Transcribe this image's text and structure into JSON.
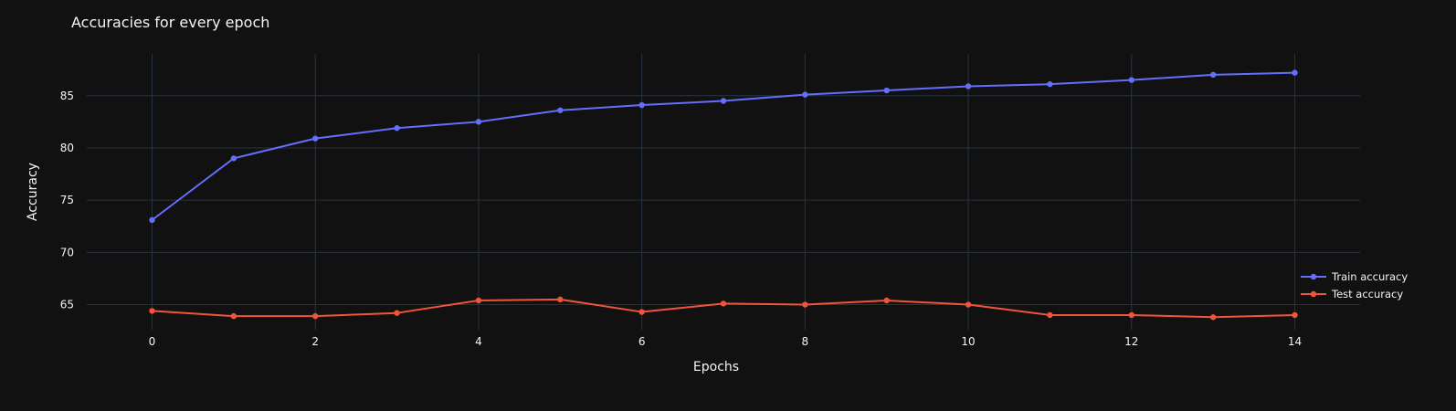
{
  "chart_data": {
    "type": "line",
    "title": "Accuracies for every epoch",
    "xlabel": "Epochs",
    "ylabel": "Accuracy",
    "xlim": [
      -0.8,
      14.8
    ],
    "ylim": [
      62.6,
      89.0
    ],
    "x_ticks": [
      0,
      2,
      4,
      6,
      8,
      10,
      12,
      14
    ],
    "y_ticks": [
      65,
      70,
      75,
      80,
      85
    ],
    "grid": true,
    "legend_position": "right",
    "x": [
      0,
      1,
      2,
      3,
      4,
      5,
      6,
      7,
      8,
      9,
      10,
      11,
      12,
      13,
      14
    ],
    "series": [
      {
        "name": "Train accuracy",
        "color": "#636efa",
        "values": [
          73.1,
          79.0,
          80.9,
          81.9,
          82.5,
          83.6,
          84.1,
          84.5,
          85.1,
          85.5,
          85.9,
          86.1,
          86.5,
          87.0,
          87.2
        ]
      },
      {
        "name": "Test accuracy",
        "color": "#ef553b",
        "values": [
          64.4,
          63.9,
          63.9,
          64.2,
          65.4,
          65.5,
          64.3,
          65.1,
          65.0,
          65.4,
          65.0,
          64.0,
          64.0,
          63.8,
          64.0
        ]
      }
    ]
  },
  "colors": {
    "background": "#111111",
    "grid": "#283442",
    "text": "#f2f5fa"
  }
}
